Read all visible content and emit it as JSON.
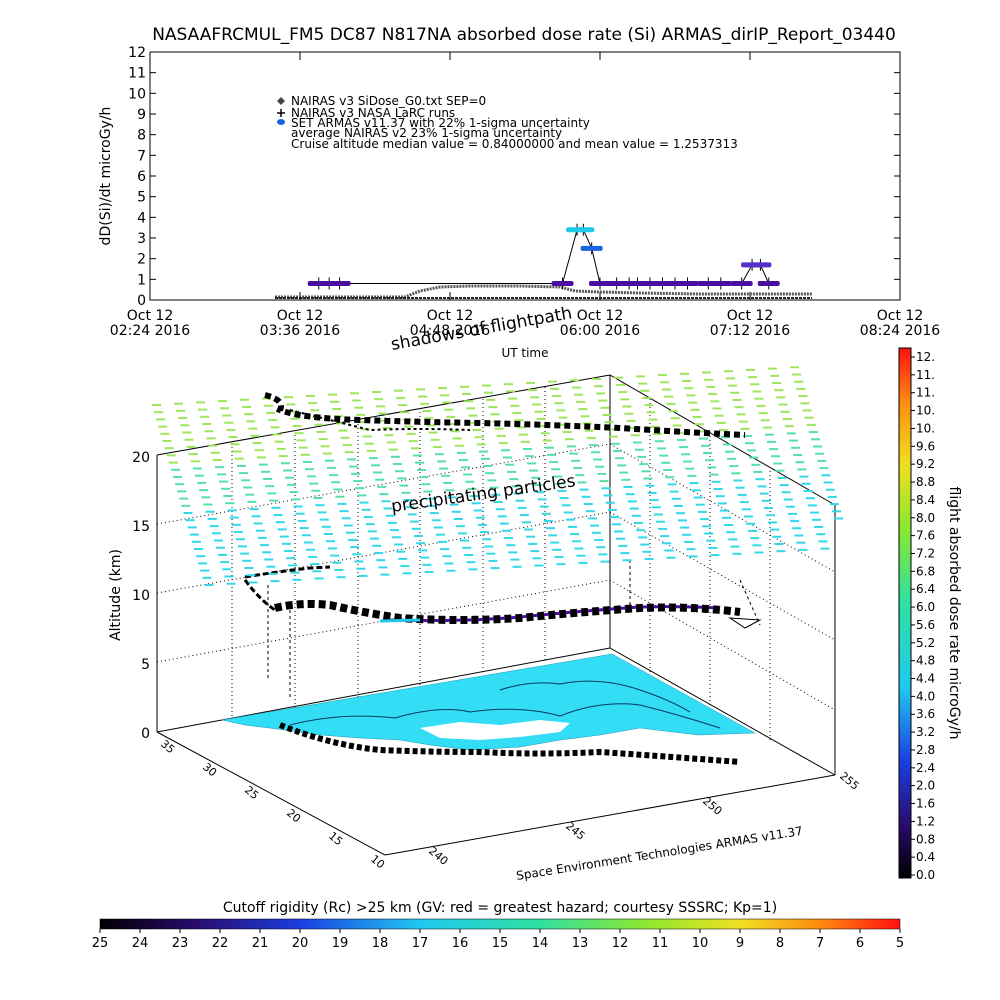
{
  "title": "NASAAFRCMUL_FM5 DC87 N817NA absorbed dose rate (Si) ARMAS_dirIP_Report_03440",
  "chart_data": [
    {
      "type": "line",
      "name": "dose-rate-timeseries",
      "ylabel": "dD(Si)/dt microGy/h",
      "xlabel": "UT time",
      "ylim": [
        0,
        12
      ],
      "yticks": [
        "0",
        "1",
        "2",
        "3",
        "4",
        "5",
        "6",
        "7",
        "8",
        "9",
        "10",
        "11",
        "12"
      ],
      "xtick_line1": [
        "Oct 12",
        "Oct 12",
        "Oct 12",
        "Oct 12",
        "Oct 12",
        "Oct 12"
      ],
      "xtick_line2": [
        "02:24 2016",
        "03:36 2016",
        "04:48 2016",
        "06:00 2016",
        "07:12 2016",
        "08:24 2016"
      ],
      "xlim_minutes": [
        144,
        504
      ],
      "legend": [
        {
          "marker": "diamond",
          "label": "NAIRAS v3 SiDose_G0.txt SEP=0"
        },
        {
          "marker": "plus",
          "label": "NAIRAS v3 NASA LaRC runs"
        },
        {
          "marker": "dot",
          "label": "SET ARMAS v11.37 with 22% 1-sigma uncertainty"
        },
        {
          "marker": "none",
          "label": "average NAIRAS v2 23% 1-sigma uncertainty"
        },
        {
          "marker": "none",
          "label": "Cruise altitude median value = 0.84000000 and mean value = 1.2537313"
        }
      ],
      "series": [
        {
          "label_ref": "SET ARMAS v11.37",
          "points": [
            {
              "t": 225,
              "v": 0.8,
              "color": "#4a0fa0"
            },
            {
              "t": 230,
              "v": 0.8,
              "color": "#4a0fa0"
            },
            {
              "t": 235,
              "v": 0.8,
              "color": "#4a0fa0"
            },
            {
              "t": 342,
              "v": 0.8,
              "color": "#4a0fa0"
            },
            {
              "t": 349,
              "v": 3.4,
              "color": "#22c8ea"
            },
            {
              "t": 352,
              "v": 3.4,
              "color": "#22c8ea"
            },
            {
              "t": 356,
              "v": 2.5,
              "color": "#1a64e0"
            },
            {
              "t": 360,
              "v": 0.8,
              "color": "#4a0fa0"
            },
            {
              "t": 368,
              "v": 0.8,
              "color": "#4a0fa0"
            },
            {
              "t": 374,
              "v": 0.8,
              "color": "#4a0fa0"
            },
            {
              "t": 378,
              "v": 0.8,
              "color": "#4a0fa0"
            },
            {
              "t": 384,
              "v": 0.8,
              "color": "#4a0fa0"
            },
            {
              "t": 390,
              "v": 0.8,
              "color": "#4a0fa0"
            },
            {
              "t": 396,
              "v": 0.8,
              "color": "#4a0fa0"
            },
            {
              "t": 402,
              "v": 0.8,
              "color": "#4a0fa0"
            },
            {
              "t": 412,
              "v": 0.8,
              "color": "#4a0fa0"
            },
            {
              "t": 418,
              "v": 0.8,
              "color": "#4a0fa0"
            },
            {
              "t": 428,
              "v": 0.8,
              "color": "#4a0fa0"
            },
            {
              "t": 433,
              "v": 1.7,
              "color": "#5530c8"
            },
            {
              "t": 437,
              "v": 1.7,
              "color": "#5530c8"
            },
            {
              "t": 441,
              "v": 0.8,
              "color": "#4a0fa0"
            }
          ]
        }
      ]
    },
    {
      "type": "scatter",
      "name": "3d-flight-altitude",
      "zlabel": "Altitude (km)",
      "zticks": [
        "0",
        "5",
        "10",
        "15",
        "20"
      ],
      "lat_ticks": [
        "35",
        "30",
        "25",
        "20",
        "15",
        "10"
      ],
      "lon_ticks": [
        "240",
        "245",
        "250",
        "255"
      ],
      "annotations": [
        "shadows of flightpath",
        "precipitating particles"
      ],
      "footer": "Space Environment Technologies ARMAS v11.37"
    },
    {
      "type": "heatmap",
      "name": "cutoff-rigidity-colorbar",
      "title": "Cutoff rigidity (Rc) >25 km (GV: red = greatest hazard; courtesy SSSRC; Kp=1)",
      "ticks": [
        "25",
        "24",
        "23",
        "22",
        "21",
        "20",
        "19",
        "18",
        "17",
        "16",
        "15",
        "14",
        "13",
        "12",
        "11",
        "10",
        "9",
        "8",
        "7",
        "6",
        "5"
      ]
    },
    {
      "type": "heatmap",
      "name": "dose-rate-colorbar",
      "label": "flight absorbed dose rate microGy/h",
      "ticks": [
        "12.",
        "11.",
        "11.",
        "10.",
        "10.",
        "9.6",
        "9.2",
        "8.8",
        "8.4",
        "8.0",
        "7.6",
        "7.2",
        "6.8",
        "6.4",
        "6.0",
        "5.6",
        "5.2",
        "4.8",
        "4.4",
        "4.0",
        "3.6",
        "3.2",
        "2.8",
        "2.4",
        "2.0",
        "1.6",
        "1.2",
        "0.8",
        "0.4",
        "0.0"
      ]
    }
  ],
  "colors": {
    "armas_low": "#4a0fa0",
    "armas_high": "#22c8ea",
    "surface_cyan": "#33ddf5",
    "particles_top": "#aee85a",
    "particles_mid": "#44e0c8"
  }
}
